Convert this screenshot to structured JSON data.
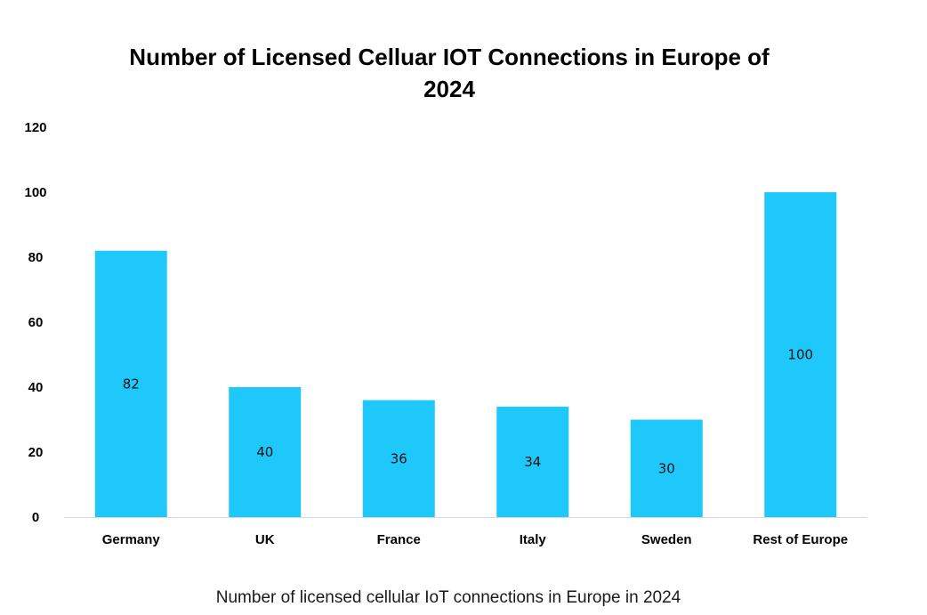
{
  "chart_data": {
    "type": "bar",
    "title_lines": [
      "Number of Licensed Celluar  IOT Connections in Europe of",
      "2024"
    ],
    "categories": [
      "Germany",
      "UK",
      "France",
      "Italy",
      "Sweden",
      "Rest of Europe"
    ],
    "values": [
      82,
      40,
      36,
      34,
      30,
      100
    ],
    "data_labels": [
      "82",
      "40",
      "36",
      "34",
      "30",
      "100"
    ],
    "ylim": [
      0,
      120
    ],
    "yticks": [
      0,
      20,
      40,
      60,
      80,
      100,
      120
    ],
    "xlabel": "",
    "ylabel": "",
    "grid": false,
    "legend": "none",
    "bar_color": "#1ec8fb",
    "axis_color": "#d9d9d9"
  },
  "caption": "Number of licensed cellular IoT connections in Europe in 2024"
}
